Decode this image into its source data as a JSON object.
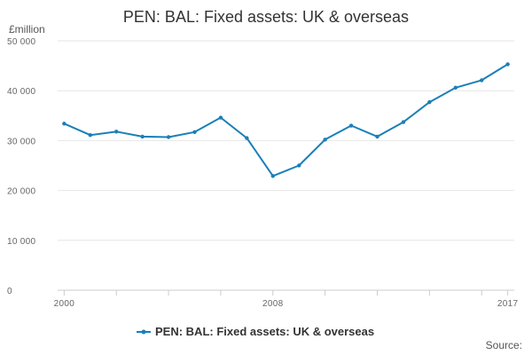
{
  "chart_data": {
    "type": "line",
    "title": "PEN: BAL: Fixed assets: UK & overseas",
    "unit_label": "£million",
    "source_label": "Source:",
    "x": [
      2000,
      2001,
      2002,
      2003,
      2004,
      2005,
      2006,
      2007,
      2008,
      2009,
      2010,
      2011,
      2012,
      2013,
      2014,
      2015,
      2016,
      2017
    ],
    "x_tick_labels": [
      "2000",
      "2008",
      "2017"
    ],
    "x_tick_values": [
      2000,
      2008,
      2017
    ],
    "xlim": [
      1999.75,
      2017.25
    ],
    "ylim": [
      0,
      50000
    ],
    "y_ticks": [
      0,
      10000,
      20000,
      30000,
      40000,
      50000
    ],
    "y_tick_labels": [
      "0",
      "10 000",
      "20 000",
      "30 000",
      "40 000",
      "50 000"
    ],
    "grid": true,
    "legend_position": "bottom",
    "series": [
      {
        "name": "PEN: BAL: Fixed assets: UK & overseas",
        "color": "#1a7fb8",
        "values": [
          33400,
          31100,
          31800,
          30800,
          30700,
          31700,
          34600,
          30500,
          22900,
          25000,
          30200,
          33000,
          30800,
          33700,
          37700,
          40600,
          42100,
          45300
        ]
      }
    ]
  }
}
